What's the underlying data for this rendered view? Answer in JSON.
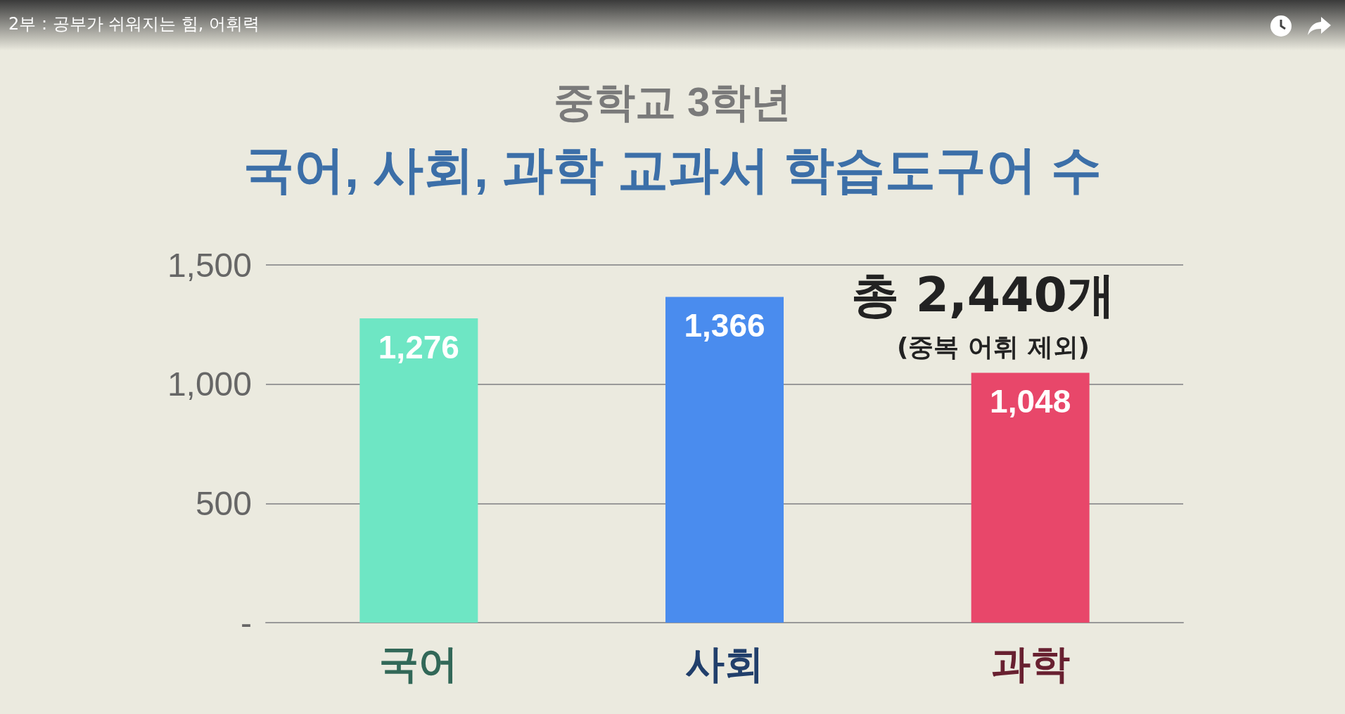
{
  "chart_data": {
    "type": "bar",
    "title": "국어, 사회, 과학 교과서 학습도구어 수",
    "subtitle": "중학교 3학년",
    "categories": [
      "국어",
      "사회",
      "과학"
    ],
    "values": [
      1276,
      1366,
      1048
    ],
    "colors": [
      "#6ee6c4",
      "#4a8cee",
      "#e8476a"
    ],
    "ylim": [
      0,
      1500
    ],
    "yticks": [
      {
        "value": 0,
        "label": "-"
      },
      {
        "value": 500,
        "label": "500"
      },
      {
        "value": 1000,
        "label": "1,000"
      },
      {
        "value": 1500,
        "label": "1,500"
      }
    ],
    "grid": "y",
    "value_labels": [
      "1,276",
      "1,366",
      "1,048"
    ],
    "annotations": [
      "2부 : 공부가 쉬워지는 힘, 어휘력",
      "총 2,440개",
      "(중복 어휘 제외)"
    ]
  }
}
